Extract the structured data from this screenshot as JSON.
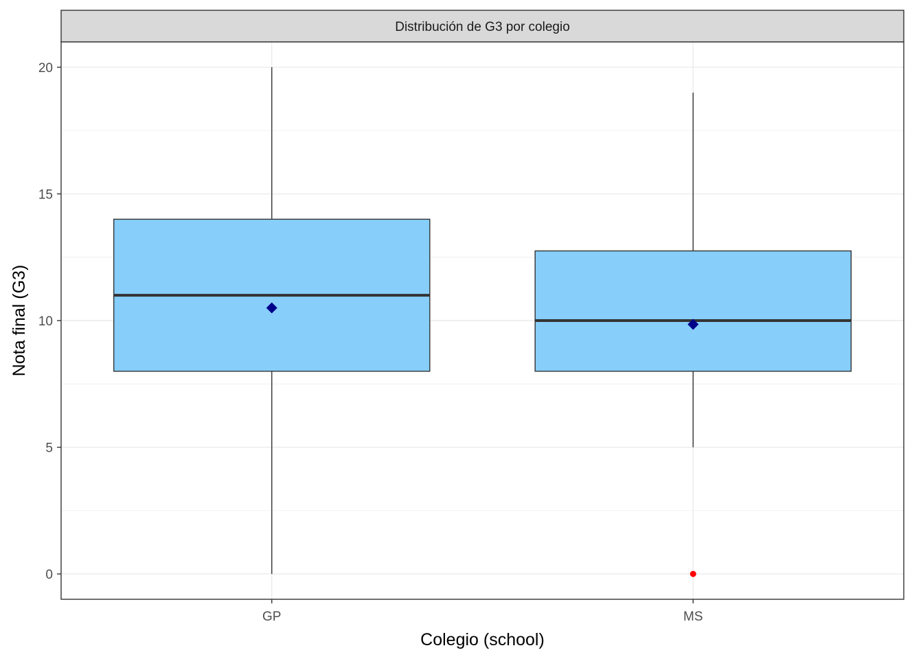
{
  "chart_data": {
    "type": "boxplot",
    "title": "Distribución de G3 por colegio",
    "xlabel": "Colegio (school)",
    "ylabel": "Nota final (G3)",
    "categories": [
      "GP",
      "MS"
    ],
    "yticks": [
      0,
      5,
      10,
      15,
      20
    ],
    "ylim": [
      -1,
      21
    ],
    "grid": true,
    "boxes": [
      {
        "category": "GP",
        "min": 0,
        "q1": 8,
        "median": 11,
        "q3": 14,
        "max": 20,
        "mean": 10.5,
        "outliers": []
      },
      {
        "category": "MS",
        "min": 5,
        "q1": 8,
        "median": 10,
        "q3": 12.75,
        "max": 19,
        "mean": 9.85,
        "outliers": [
          0
        ]
      }
    ],
    "colors": {
      "box_fill": "#87CEFA",
      "box_stroke": "#333333",
      "median": "#333333",
      "mean_marker": "#00008B",
      "outlier": "#FF0000",
      "grid": "#EBEBEB",
      "strip_fill": "#D9D9D9",
      "panel_border": "#333333"
    }
  }
}
